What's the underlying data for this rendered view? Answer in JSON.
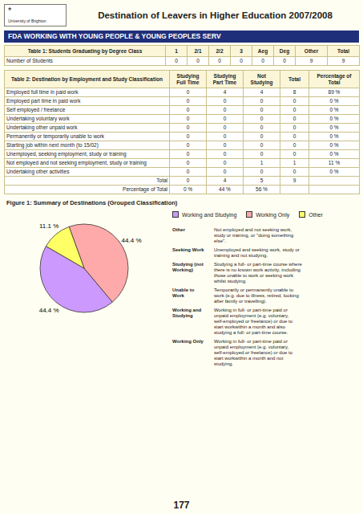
{
  "chart_data": {
    "type": "pie",
    "title": "Figure 1: Summary of Destinations (Grouped Classification)",
    "categories": [
      "Working and Studying",
      "Working Only",
      "Other"
    ],
    "values": [
      44.4,
      44.4,
      11.1
    ],
    "value_labels": [
      "44.4 %",
      "44.4 %",
      "11.1 %"
    ],
    "colors": [
      "#CC99FF",
      "#FFAAAA",
      "#FFFF66"
    ],
    "data_labels": true,
    "legend": "right"
  },
  "page": {
    "title": "Destination of Leavers in Higher Education 2007/2008",
    "subtitle": "FDA WORKING WITH YOUNG PEOPLE & YOUNG PEOPLES SERV",
    "logo": [
      "*",
      "University of Brighton"
    ],
    "table1": {
      "headers": [
        "Table 1: Students Graduating by Degree Class",
        "1",
        "2/1",
        "2/2",
        "3",
        "Aeg",
        "Deg",
        "Other",
        "Total"
      ],
      "rows": [
        [
          "Number of Students",
          "0",
          "0",
          "0",
          "0",
          "0",
          "0",
          "9",
          "9"
        ]
      ]
    },
    "table2": {
      "headers": [
        "Table 2: Destination by Employment and Study Classification",
        "Studying\nFull Time",
        "Studying\nPart Time",
        "Not\nStudying",
        "Total",
        "Percentage of\nTotal"
      ],
      "rows": [
        [
          "Employed full time in paid work",
          "0",
          "4",
          "4",
          "8",
          "89 %"
        ],
        [
          "Employed part time in paid work",
          "0",
          "0",
          "0",
          "0",
          "0 %"
        ],
        [
          "Self employed / freelance",
          "0",
          "0",
          "0",
          "0",
          "0 %"
        ],
        [
          "Undertaking voluntary work",
          "0",
          "0",
          "0",
          "0",
          "0 %"
        ],
        [
          "Undertaking other unpaid work",
          "0",
          "0",
          "0",
          "0",
          "0 %"
        ],
        [
          "Permanently or temporarily unable to work",
          "0",
          "0",
          "0",
          "0",
          "0 %"
        ],
        [
          "Starting job within next month (to 15/02)",
          "0",
          "0",
          "0",
          "0",
          "0 %"
        ],
        [
          "Unemployed, seeking employment, study or training",
          "0",
          "0",
          "0",
          "0",
          "0 %"
        ],
        [
          "Not employed and not seeking employment, study or training",
          "0",
          "0",
          "1",
          "1",
          "11 %"
        ],
        [
          "Undertaking other activities",
          "0",
          "0",
          "0",
          "0",
          "0 %"
        ],
        [
          "Total",
          "0",
          "4",
          "5",
          "9",
          ""
        ],
        [
          "Percentage of Total",
          "0 %",
          "44 %",
          "56 %",
          "",
          ""
        ]
      ]
    },
    "definitions": [
      [
        "Other",
        "Not employed and not seeking work,\nstudy or training, or \"doing something\nelse\"."
      ],
      [
        "Seeking Work",
        "Unemployed and seeking work, study or\ntraining and not studying."
      ],
      [
        "Studying (not\nWorking)",
        "Studying a full- or part-time course where\nthere is no known work activity, including\nthose unable to  work or seeking work\nwhilst studying."
      ],
      [
        "Unable to\nWork",
        "Temporarily or permanently unable to\nwork (e.g. due to illness, retired, looking\nafter family or travelling)."
      ],
      [
        "Working and\nStudying",
        "Working in full- or part-time paid or\nunpaid employment (e.g. voluntary,\nself-employed or freelance) or due to\nstart workwithin a month and also\nstudying a full- or part-time course."
      ],
      [
        "Working Only",
        "Working in full- or part-time paid or\nunpaid employment (e.g. voluntary,\nself-employed or freelance) or due to\nstart workwithin a month and not\nstudying."
      ]
    ],
    "page_number": "177"
  }
}
